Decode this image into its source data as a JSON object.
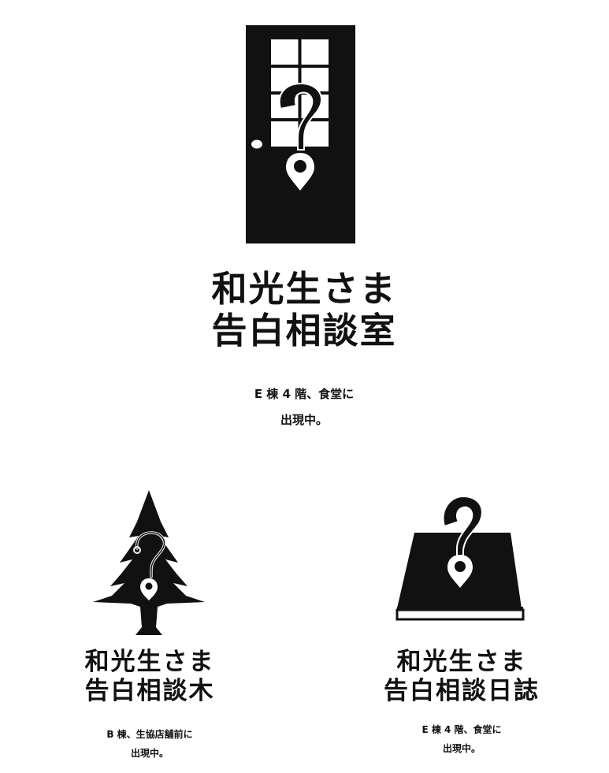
{
  "main": {
    "icon": "door-question-pin-icon",
    "title_line1": "和光生さま",
    "title_line2": "告白相談室",
    "caption_line1": "E 棟 4 階、食堂に",
    "caption_line2": "出現中。"
  },
  "left": {
    "icon": "tree-question-pin-icon",
    "title_line1": "和光生さま",
    "title_line2": "告白相談木",
    "caption_line1": "B 棟、生協店舗前に",
    "caption_line2": "出現中。"
  },
  "right": {
    "icon": "book-question-pin-icon",
    "title_line1": "和光生さま",
    "title_line2": "告白相談日誌",
    "caption_line1": "E 棟 4 階、食堂に",
    "caption_line2": "出現中。"
  },
  "colors": {
    "ink": "#111111",
    "background": "#ffffff"
  }
}
